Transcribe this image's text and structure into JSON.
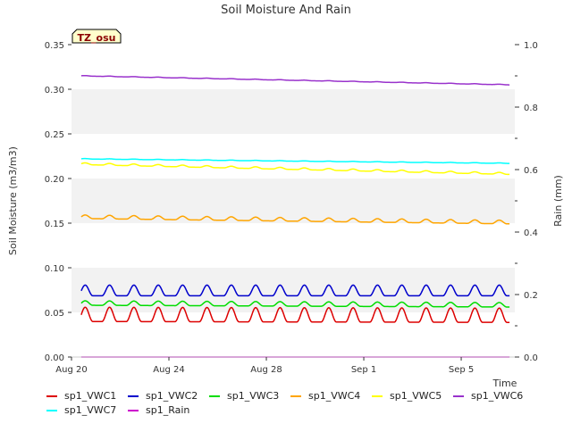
{
  "chart_data": {
    "type": "line",
    "title": "Soil Moisture And Rain",
    "ylabel": "Soil Moisture (m3/m3)",
    "y2label": "Rain (mm)",
    "xlabel": "Time",
    "site_badge": "TZ_osu",
    "ylim": [
      0.0,
      0.35
    ],
    "y2lim": [
      0.0,
      1.0
    ],
    "xlim_days": [
      0,
      18.2
    ],
    "x_ticks": [
      "Aug 20",
      "Aug 24",
      "Aug 28",
      "Sep 1",
      "Sep 5"
    ],
    "y_ticks": [
      "0.00",
      "0.05",
      "0.10",
      "0.15",
      "0.20",
      "0.25",
      "0.30",
      "0.35"
    ],
    "y2_ticks": [
      "0.0",
      "0.2",
      "0.4",
      "0.6",
      "0.8",
      "1.0"
    ],
    "grid": "horizontal alternating bands",
    "legend_placement": "bottom",
    "series": [
      {
        "name": "sp1_VWC1",
        "color": "#dd0000",
        "axis": "left",
        "start": 0.043,
        "end": 0.042,
        "daily_amplitude": 0.016
      },
      {
        "name": "sp1_VWC2",
        "color": "#0000cc",
        "axis": "left",
        "start": 0.071,
        "end": 0.071,
        "daily_amplitude": 0.012
      },
      {
        "name": "sp1_VWC3",
        "color": "#00dd00",
        "axis": "left",
        "start": 0.059,
        "end": 0.057,
        "daily_amplitude": 0.005
      },
      {
        "name": "sp1_VWC4",
        "color": "#ffa500",
        "axis": "left",
        "start": 0.156,
        "end": 0.15,
        "daily_amplitude": 0.004
      },
      {
        "name": "sp1_VWC5",
        "color": "#ffff00",
        "axis": "left",
        "start": 0.216,
        "end": 0.205,
        "daily_amplitude": 0.002
      },
      {
        "name": "sp1_VWC6",
        "color": "#9932cc",
        "axis": "left",
        "start": 0.315,
        "end": 0.305,
        "daily_amplitude": 0.0005
      },
      {
        "name": "sp1_VWC7",
        "color": "#00ffff",
        "axis": "left",
        "start": 0.222,
        "end": 0.217,
        "daily_amplitude": 0.0005
      },
      {
        "name": "sp1_Rain",
        "color": "#cc00cc",
        "axis": "right",
        "start": 0.0,
        "end": 0.0,
        "daily_amplitude": 0.0
      }
    ]
  }
}
